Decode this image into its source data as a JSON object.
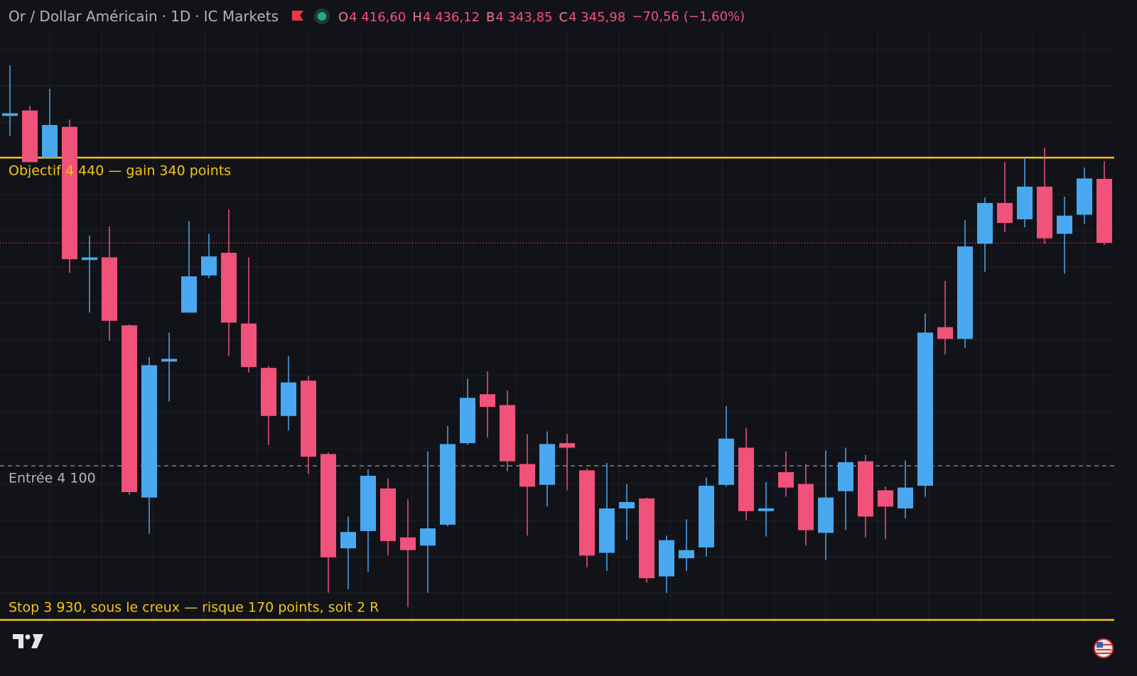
{
  "header": {
    "symbol": "Or / Dollar Américain",
    "interval": "1D",
    "exchange": "IC Markets",
    "ohlc": [
      {
        "key": "O",
        "text": "4 416,60"
      },
      {
        "key": "H",
        "text": "4 436,12"
      },
      {
        "key": "B",
        "text": "4 343,85"
      },
      {
        "key": "C",
        "text": "4 345,98"
      }
    ],
    "change": "−70,56",
    "change_pct": "(−1,60%)"
  },
  "chart_data": {
    "type": "candlestick",
    "grid": true,
    "up_color": "#4aa8f0",
    "down_color": "#f0527a",
    "open": [
      4486,
      4492,
      4440,
      4474,
      4327,
      4330,
      4255,
      4065,
      4215,
      4269,
      4310,
      4335,
      4257,
      4208,
      4155,
      4194,
      4113,
      4009,
      4028,
      4075,
      4021,
      4012,
      4035,
      4125,
      4179,
      4167,
      4102,
      4079,
      4125,
      4095,
      4004,
      4053,
      4064,
      3978,
      3998,
      4010,
      4079,
      4120,
      4050,
      4093,
      4080,
      4026,
      4072,
      4105,
      4073,
      4053,
      4078,
      4253,
      4240,
      4345,
      4390,
      4372,
      4408,
      4356,
      4377,
      4416.6
    ],
    "high": [
      4542,
      4497,
      4516,
      4482,
      4354,
      4364,
      4256,
      4220,
      4247,
      4370,
      4356,
      4383,
      4330,
      4210,
      4221,
      4199,
      4115,
      4044,
      4096,
      4086,
      4063,
      4116,
      4144,
      4196,
      4204,
      4183,
      4135,
      4138,
      4135,
      4097,
      4103,
      4080,
      4065,
      4023,
      4041,
      4087,
      4166,
      4142,
      4082,
      4116,
      4102,
      4117,
      4120,
      4112,
      4077,
      4106,
      4268,
      4304,
      4371,
      4396,
      4435,
      4440,
      4451,
      4397,
      4429,
      4436.12
    ],
    "low": [
      4464,
      4435,
      4440,
      4313,
      4269,
      4238,
      4068,
      4025,
      4171,
      4269,
      4307,
      4221,
      4203,
      4123,
      4139,
      4091,
      3960,
      3964,
      3983,
      4001,
      3944,
      3960,
      4033,
      4123,
      4131,
      4094,
      4023,
      4055,
      4073,
      3988,
      3984,
      4018,
      3971,
      3960,
      3984,
      4000,
      4077,
      4040,
      4022,
      4066,
      4012,
      3996,
      4029,
      4021,
      4019,
      4042,
      4066,
      4223,
      4230,
      4314,
      4358,
      4363,
      4345,
      4312,
      4367,
      4343.85
    ],
    "close": [
      4489,
      4435,
      4476,
      4328,
      4330,
      4260,
      4071,
      4211,
      4218,
      4309,
      4331,
      4258,
      4209,
      4155,
      4192,
      4110,
      3999,
      4027,
      4089,
      4017,
      4007,
      4031,
      4124,
      4175,
      4165,
      4105,
      4077,
      4124,
      4120,
      4001,
      4053,
      4060,
      3976,
      4018,
      4007,
      4078,
      4130,
      4050,
      4053,
      4076,
      4029,
      4065,
      4104,
      4044,
      4055,
      4076,
      4247,
      4240,
      4342,
      4390,
      4368,
      4408,
      4351,
      4376,
      4417,
      4345.98
    ],
    "levels": [
      {
        "name": "target",
        "value": 4440,
        "color": "#f5c518",
        "style": "solid",
        "label": "Objectif 4 440 — gain 340 points"
      },
      {
        "name": "entry",
        "value": 4100,
        "color": "#9598a1",
        "style": "dashed",
        "label": "Entrée 4 100"
      },
      {
        "name": "stop",
        "value": 3930,
        "color": "#f5c518",
        "style": "solid",
        "label": "Stop 3 930, sous le creux — risque 170 points, soit 2 R"
      },
      {
        "name": "last",
        "value": 4345.98,
        "color": "#f0527a",
        "style": "dotted"
      }
    ]
  }
}
